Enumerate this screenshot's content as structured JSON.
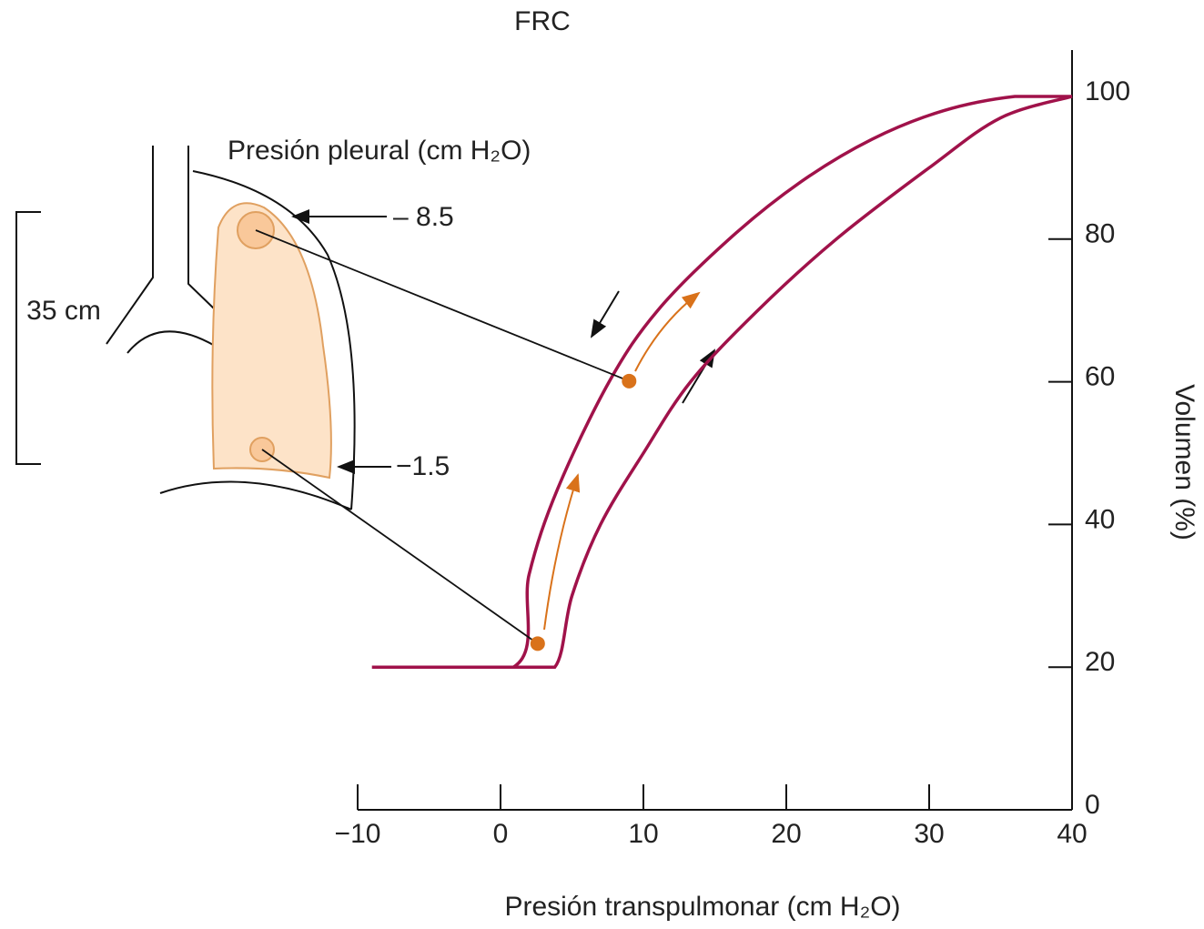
{
  "chart_data": {
    "type": "line",
    "title": "FRC",
    "x_label": "Presión transpulmonar (cm H₂O)",
    "y_label": "Volumen (%)",
    "xlim": [
      -10,
      40
    ],
    "ylim": [
      0,
      100
    ],
    "xticks": [
      {
        "value": -10,
        "label": "−10"
      },
      0,
      10,
      20,
      30,
      40
    ],
    "yticks": [
      0,
      20,
      40,
      60,
      80,
      100
    ],
    "series": [
      {
        "color": "#a0124a",
        "x": [
          -9,
          0.9,
          2,
          4,
          7.6,
          11,
          16,
          21,
          26,
          31,
          36,
          40
        ],
        "values": [
          20,
          20,
          33,
          45,
          60,
          70,
          80,
          88,
          94,
          98,
          100,
          100
        ]
      },
      {
        "color": "#a0124a",
        "x": [
          0.9,
          3.8,
          5,
          7,
          10,
          13.3,
          18,
          23.5,
          30,
          35,
          40
        ],
        "values": [
          20,
          20,
          30,
          40,
          50,
          60,
          70,
          80,
          90,
          97,
          100
        ]
      }
    ],
    "points": {
      "color": "#d9721a",
      "x": [
        2.6,
        9
      ],
      "values": [
        23.3,
        60.1
      ]
    },
    "annotations": {
      "pleural_title": "Presión pleural (cm H₂O)",
      "top_pressure": "– 8.5",
      "bottom_pressure": "−1.5",
      "height": "35 cm"
    }
  }
}
